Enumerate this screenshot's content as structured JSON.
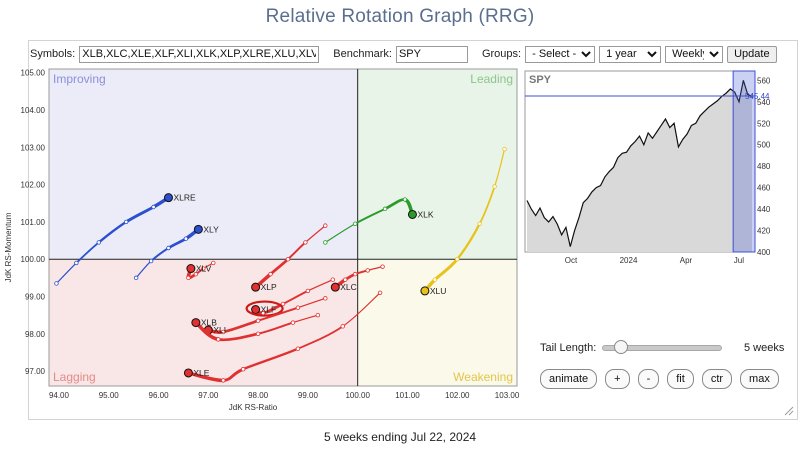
{
  "page": {
    "title": "Relative Rotation Graph (RRG)"
  },
  "toolbar": {
    "symbols_label": "Symbols:",
    "symbols_value": "XLB,XLC,XLE,XLF,XLI,XLK,XLP,XLRE,XLU,XLV,XLY",
    "benchmark_label": "Benchmark:",
    "benchmark_value": "SPY",
    "groups_label": "Groups:",
    "groups_value": "- Select -",
    "period_value": "1 year",
    "frequency_value": "Weekly",
    "update_label": "Update"
  },
  "quadrants": {
    "improving": "Improving",
    "leading": "Leading",
    "weakening": "Weakening",
    "lagging": "Lagging",
    "colors": {
      "improving": "#ececf8",
      "leading": "#e8f4e8",
      "weakening": "#fbf9e9",
      "lagging": "#f9e6e6"
    },
    "label_colors": {
      "improving": "#8b8fd9",
      "leading": "#8ec48e",
      "weakening": "#e3c54a",
      "lagging": "#e48a8a"
    }
  },
  "chart_data": [
    {
      "type": "scatter",
      "title": "",
      "xlabel": "JdK RS-Ratio",
      "ylabel": "JdK RS-Momentum",
      "xlim": [
        93.8,
        103.2
      ],
      "ylim": [
        96.6,
        105.1
      ],
      "x_ticks": [
        "94.00",
        "95.00",
        "96.00",
        "97.00",
        "98.00",
        "99.00",
        "100.00",
        "101.00",
        "102.00",
        "103.00"
      ],
      "y_ticks": [
        "97.00",
        "98.00",
        "99.00",
        "100.00",
        "101.00",
        "102.00",
        "103.00",
        "104.00",
        "105.00"
      ],
      "center": [
        100,
        100
      ],
      "grid": false,
      "series": [
        {
          "name": "XLRE",
          "color": "#2b4fcf",
          "points": [
            [
              93.95,
              99.35
            ],
            [
              94.35,
              99.9
            ],
            [
              94.8,
              100.45
            ],
            [
              95.35,
              101.0
            ],
            [
              95.9,
              101.4
            ],
            [
              96.2,
              101.65
            ]
          ]
        },
        {
          "name": "XLY",
          "color": "#2b4fcf",
          "points": [
            [
              95.55,
              99.5
            ],
            [
              95.85,
              99.95
            ],
            [
              96.2,
              100.3
            ],
            [
              96.55,
              100.55
            ],
            [
              96.8,
              100.8
            ]
          ]
        },
        {
          "name": "XLV",
          "color": "#e03030",
          "points": [
            [
              97.1,
              99.9
            ],
            [
              96.9,
              99.75
            ],
            [
              96.75,
              99.6
            ],
            [
              96.6,
              99.5
            ],
            [
              96.65,
              99.75
            ]
          ]
        },
        {
          "name": "XLP",
          "color": "#e03030",
          "points": [
            [
              99.35,
              100.9
            ],
            [
              98.95,
              100.45
            ],
            [
              98.6,
              100.0
            ],
            [
              98.25,
              99.6
            ],
            [
              97.95,
              99.25
            ]
          ]
        },
        {
          "name": "XLC",
          "color": "#e03030",
          "points": [
            [
              100.5,
              99.8
            ],
            [
              100.2,
              99.7
            ],
            [
              99.95,
              99.6
            ],
            [
              99.75,
              99.45
            ],
            [
              99.55,
              99.25
            ]
          ]
        },
        {
          "name": "XLF",
          "color": "#e03030",
          "points": [
            [
              99.5,
              99.45
            ],
            [
              99.0,
              99.15
            ],
            [
              98.5,
              98.8
            ],
            [
              98.1,
              98.55
            ],
            [
              97.95,
              98.65
            ]
          ]
        },
        {
          "name": "XLI",
          "color": "#e03030",
          "points": [
            [
              99.35,
              98.95
            ],
            [
              98.8,
              98.7
            ],
            [
              98.0,
              98.35
            ],
            [
              97.3,
              98.05
            ],
            [
              97.0,
              98.1
            ]
          ]
        },
        {
          "name": "XLB",
          "color": "#e03030",
          "points": [
            [
              99.2,
              98.5
            ],
            [
              98.7,
              98.3
            ],
            [
              98.0,
              98.0
            ],
            [
              97.2,
              97.85
            ],
            [
              96.75,
              98.3
            ]
          ]
        },
        {
          "name": "XLE",
          "color": "#e03030",
          "points": [
            [
              100.45,
              99.1
            ],
            [
              99.7,
              98.2
            ],
            [
              98.8,
              97.6
            ],
            [
              97.7,
              97.05
            ],
            [
              97.3,
              96.75
            ],
            [
              96.6,
              96.95
            ]
          ]
        },
        {
          "name": "XLK",
          "color": "#2a9a2a",
          "points": [
            [
              99.35,
              100.45
            ],
            [
              99.95,
              100.95
            ],
            [
              100.55,
              101.35
            ],
            [
              100.95,
              101.6
            ],
            [
              101.1,
              101.2
            ]
          ]
        },
        {
          "name": "XLU",
          "color": "#e8c21a",
          "points": [
            [
              102.95,
              102.95
            ],
            [
              102.75,
              101.95
            ],
            [
              102.45,
              100.95
            ],
            [
              102.0,
              100.0
            ],
            [
              101.55,
              99.45
            ],
            [
              101.35,
              99.15
            ]
          ]
        }
      ],
      "highlighted_symbol": "XLF"
    },
    {
      "type": "area",
      "title": "SPY",
      "y_ticks": [
        "400",
        "420",
        "440",
        "460",
        "480",
        "500",
        "520",
        "540",
        "560"
      ],
      "x_ticks": [
        "Oct",
        "2024",
        "Apr",
        "Jul"
      ],
      "ylim": [
        400,
        565
      ],
      "crosshair_label": "545.44",
      "crosshair_value": 545.44,
      "highlight_start_fraction": 0.905,
      "values": [
        448,
        440,
        434,
        441,
        432,
        428,
        433,
        426,
        416,
        423,
        405,
        420,
        432,
        446,
        450,
        456,
        460,
        462,
        470,
        475,
        479,
        488,
        492,
        493,
        499,
        503,
        508,
        500,
        511,
        506,
        512,
        518,
        524,
        516,
        520,
        498,
        505,
        510,
        518,
        520,
        527,
        531,
        535,
        538,
        541,
        545,
        548,
        552,
        549,
        540,
        560,
        547,
        545
      ]
    }
  ],
  "controls": {
    "tail_length_label": "Tail Length:",
    "tail_length_value": "5 weeks",
    "tail_length_fraction": 0.1,
    "buttons": [
      "animate",
      "+",
      "-",
      "fit",
      "ctr",
      "max"
    ]
  },
  "footer": {
    "caption": "5 weeks ending Jul 22, 2024"
  }
}
